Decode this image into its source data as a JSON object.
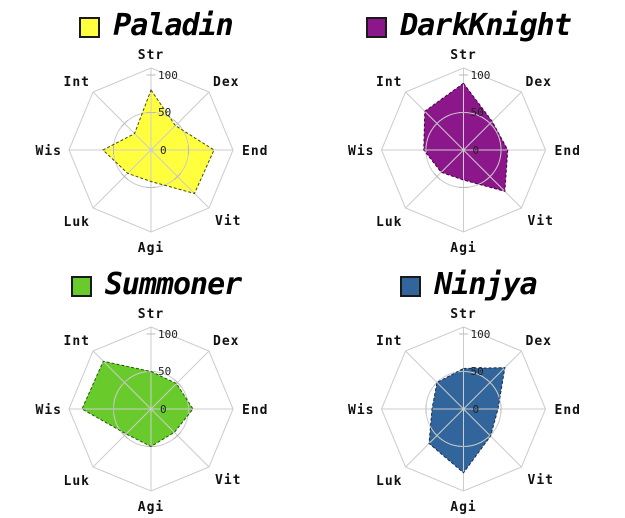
{
  "page": {
    "background": "#ffffff",
    "grid_color": "#cccccc",
    "tick_color": "#bbbbbb",
    "label_color": "#111111"
  },
  "chart_data": {
    "type": "radar",
    "axes": [
      "Str",
      "Dex",
      "End",
      "Vit",
      "Agi",
      "Luk",
      "Wis",
      "Int"
    ],
    "scale": {
      "min": 0,
      "max": 100,
      "tick_labels": [
        "100",
        "50",
        "0"
      ],
      "ring_value": 50
    },
    "layout": {
      "grid_shape": "octagon",
      "rows": 2,
      "cols": 2,
      "legend_position": "top"
    },
    "series": [
      {
        "name": "Paladin",
        "fill": "#ffff3d",
        "stroke": "#4a4a00",
        "values": [
          80,
          46,
          84,
          82,
          42,
          44,
          64,
          31
        ]
      },
      {
        "name": "DarkKnight",
        "fill": "#8b178b",
        "stroke": "#44004a",
        "values": [
          89,
          54,
          59,
          78,
          40,
          42,
          53,
          73
        ]
      },
      {
        "name": "Summoner",
        "fill": "#69cb2b",
        "stroke": "#1e5c00",
        "values": [
          50,
          48,
          56,
          44,
          50,
          47,
          92,
          90
        ]
      },
      {
        "name": "Ninjya",
        "fill": "#31659b",
        "stroke": "#14304f",
        "values": [
          54,
          78,
          46,
          51,
          85,
          65,
          42,
          50
        ]
      }
    ]
  }
}
